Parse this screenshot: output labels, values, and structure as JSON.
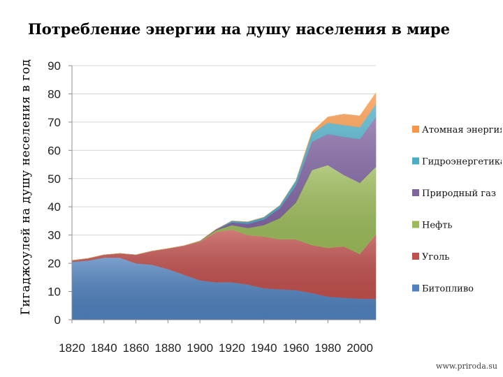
{
  "chart_data": {
    "type": "area",
    "stacked": true,
    "title": "Потребление энергии на душу населения в мире",
    "xlabel": "",
    "ylabel": "Гигаджоулей на душу неселения в год",
    "xlim": [
      1820,
      2010
    ],
    "ylim": [
      0,
      90
    ],
    "x_ticks": [
      1820,
      1840,
      1860,
      1880,
      1900,
      1920,
      1940,
      1960,
      1980,
      2000
    ],
    "y_ticks": [
      0,
      10,
      20,
      30,
      40,
      50,
      60,
      70,
      80,
      90
    ],
    "x": [
      1820,
      1830,
      1840,
      1850,
      1860,
      1870,
      1880,
      1890,
      1900,
      1910,
      1920,
      1930,
      1940,
      1950,
      1960,
      1970,
      1980,
      1990,
      2000,
      2010
    ],
    "series": [
      {
        "name": "Битопливо",
        "color": "#4f81bd",
        "values": [
          20.5,
          21,
          22,
          22,
          20,
          19.5,
          18,
          16,
          14,
          13.3,
          13.3,
          12.5,
          11.2,
          10.8,
          10.5,
          9.5,
          8.2,
          7.8,
          7.5,
          7.4
        ]
      },
      {
        "name": "Уголь",
        "color": "#c0504d",
        "values": [
          0.5,
          0.7,
          1,
          1.5,
          3,
          4.8,
          7.2,
          10.2,
          13.6,
          17.7,
          18.7,
          17.5,
          18.3,
          17.7,
          18,
          17,
          17.3,
          18.2,
          15.8,
          22.8
        ]
      },
      {
        "name": "Нефть",
        "color": "#9bbb59",
        "values": [
          0,
          0,
          0,
          0,
          0,
          0,
          0,
          0,
          0.2,
          0.7,
          1.5,
          2.5,
          4,
          7.5,
          13,
          26.5,
          29.3,
          25.3,
          25.2,
          24
        ]
      },
      {
        "name": "Природный газ",
        "color": "#8064a2",
        "values": [
          0,
          0,
          0,
          0,
          0,
          0,
          0,
          0,
          0.1,
          0.3,
          1,
          1.5,
          2,
          3.5,
          6,
          10,
          11,
          13.5,
          15.5,
          17.5
        ]
      },
      {
        "name": "Гидроэнергетика",
        "color": "#4bacc6",
        "values": [
          0,
          0,
          0,
          0,
          0,
          0,
          0,
          0,
          0,
          0,
          0.5,
          0.7,
          0.8,
          1,
          1.7,
          3,
          4,
          4.2,
          4.2,
          4.6
        ]
      },
      {
        "name": "Атомная энергия",
        "color": "#f79646",
        "values": [
          0,
          0,
          0,
          0,
          0,
          0,
          0,
          0,
          0,
          0,
          0,
          0,
          0,
          0,
          0,
          0.5,
          2,
          3.8,
          4,
          4
        ]
      }
    ],
    "legend_position": "right",
    "legend_order": [
      "Атомная энергия",
      "Гидроэнергетика",
      "Природный газ",
      "Нефть",
      "Уголь",
      "Битопливо"
    ],
    "grid": true,
    "source": "www.priroda.su"
  }
}
